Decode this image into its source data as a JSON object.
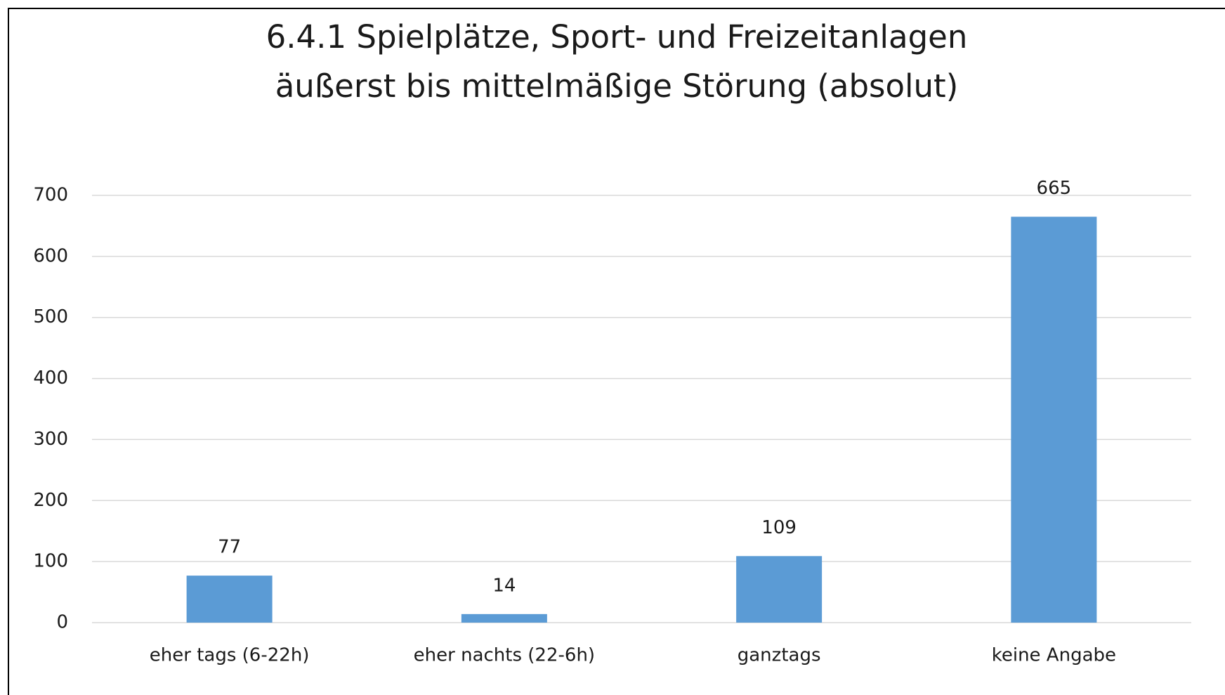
{
  "chart_data": {
    "type": "bar",
    "title": "6.4.1 Spielplätze, Sport- und Freizeitanlagen",
    "subtitle": "äußerst bis mittelmäßige Störung (absolut)",
    "categories": [
      "eher tags (6-22h)",
      "eher nachts (22-6h)",
      "ganztags",
      "keine Angabe"
    ],
    "values": [
      77,
      14,
      109,
      665
    ],
    "color": "#5b9bd5",
    "ylim": [
      0,
      700
    ],
    "yticks": [
      0,
      100,
      200,
      300,
      400,
      500,
      600,
      700
    ],
    "grid": true
  }
}
